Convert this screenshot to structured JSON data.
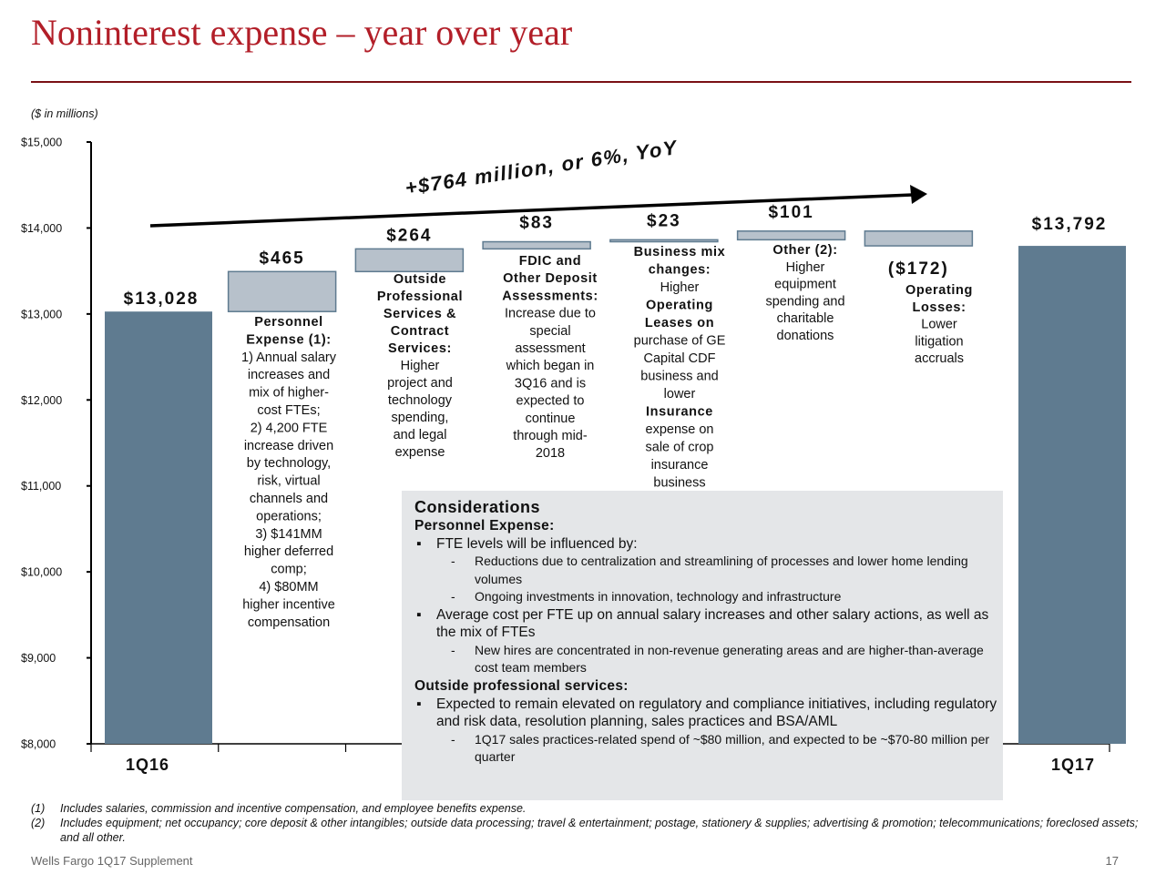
{
  "slide": {
    "title": "Noninterest expense – year over year",
    "units_note": "($ in millions)",
    "footer_left": "Wells Fargo 1Q17 Supplement",
    "page_number": "17"
  },
  "chart_data": {
    "type": "bar",
    "subtype": "waterfall",
    "ylim": [
      8000,
      15000
    ],
    "y_ticks": [
      "$8,000",
      "$9,000",
      "$10,000",
      "$11,000",
      "$12,000",
      "$13,000",
      "$14,000",
      "$15,000"
    ],
    "y_tick_values": [
      8000,
      9000,
      10000,
      11000,
      12000,
      13000,
      14000,
      15000
    ],
    "categories": [
      "1Q16",
      "Personnel Expense",
      "Outside Professional Services & Contract Services",
      "FDIC and Other Deposit Assessments",
      "Business mix changes",
      "Other",
      "Operating Losses",
      "1Q17"
    ],
    "steps": [
      {
        "kind": "total",
        "value": 13028,
        "label": "$13,028",
        "axis_label": "1Q16"
      },
      {
        "kind": "delta",
        "value": 465,
        "label": "$465"
      },
      {
        "kind": "delta",
        "value": 264,
        "label": "$264"
      },
      {
        "kind": "delta",
        "value": 83,
        "label": "$83"
      },
      {
        "kind": "delta",
        "value": 23,
        "label": "$23"
      },
      {
        "kind": "delta",
        "value": 101,
        "label": "$101"
      },
      {
        "kind": "delta",
        "value": -172,
        "label": "($172)"
      },
      {
        "kind": "total",
        "value": 13792,
        "label": "$13,792",
        "axis_label": "1Q17"
      }
    ],
    "annotation": "+$764 million, or 6%, YoY",
    "colors": {
      "total": "#5f7b90",
      "delta": "#b7c1cb",
      "delta_stroke": "#5f7b90",
      "axis": "#000000"
    }
  },
  "descriptions": [
    {
      "id": "personnel",
      "lines": [
        {
          "text": "Personnel",
          "bold": true
        },
        {
          "text": "Expense (1):",
          "bold": true
        },
        {
          "text": "1) Annual salary"
        },
        {
          "text": "increases and"
        },
        {
          "text": "mix of higher-"
        },
        {
          "text": "cost FTEs;"
        },
        {
          "text": "2) 4,200 FTE"
        },
        {
          "text": "increase driven"
        },
        {
          "text": "by technology,"
        },
        {
          "text": "risk, virtual"
        },
        {
          "text": "channels and"
        },
        {
          "text": "operations;"
        },
        {
          "text": "3) $141MM"
        },
        {
          "text": "higher deferred"
        },
        {
          "text": "comp;"
        },
        {
          "text": "4) $80MM"
        },
        {
          "text": "higher incentive"
        },
        {
          "text": "compensation"
        }
      ]
    },
    {
      "id": "outside-services",
      "lines": [
        {
          "text": "Outside",
          "bold": true
        },
        {
          "text": "Professional",
          "bold": true
        },
        {
          "text": "Services &",
          "bold": true
        },
        {
          "text": "Contract",
          "bold": true
        },
        {
          "text": "Services:",
          "bold": true
        },
        {
          "text": "Higher"
        },
        {
          "text": "project and"
        },
        {
          "text": "technology"
        },
        {
          "text": "spending,"
        },
        {
          "text": "and legal"
        },
        {
          "text": "expense"
        }
      ]
    },
    {
      "id": "fdic",
      "lines": [
        {
          "text": "FDIC and",
          "bold": true
        },
        {
          "text": "Other Deposit",
          "bold": true
        },
        {
          "text": "Assessments:",
          "bold": true
        },
        {
          "text": "Increase due to"
        },
        {
          "text": "special"
        },
        {
          "text": "assessment"
        },
        {
          "text": "which began in"
        },
        {
          "text": "3Q16 and is"
        },
        {
          "text": "expected to"
        },
        {
          "text": "continue"
        },
        {
          "text": "through mid-"
        },
        {
          "text": "2018"
        }
      ]
    },
    {
      "id": "business-mix",
      "lines": [
        {
          "text": "Business mix",
          "bold": true
        },
        {
          "text": "changes:",
          "bold": true
        },
        {
          "text": "Higher"
        },
        {
          "text": "Operating",
          "bold": true
        },
        {
          "text": "Leases on",
          "bold": true
        },
        {
          "text": "purchase of GE"
        },
        {
          "text": "Capital CDF"
        },
        {
          "text": "business and"
        },
        {
          "text": "lower"
        },
        {
          "text": "Insurance",
          "bold": true
        },
        {
          "text": "expense on"
        },
        {
          "text": "sale of crop"
        },
        {
          "text": "insurance"
        },
        {
          "text": "business"
        }
      ]
    },
    {
      "id": "other",
      "lines": [
        {
          "text": "Other (2):",
          "bold": true
        },
        {
          "text": "Higher"
        },
        {
          "text": "equipment"
        },
        {
          "text": "spending and"
        },
        {
          "text": "charitable"
        },
        {
          "text": "donations"
        }
      ]
    },
    {
      "id": "operating-losses",
      "lines": [
        {
          "text": "Operating",
          "bold": true
        },
        {
          "text": "Losses:",
          "bold": true
        },
        {
          "text": "Lower"
        },
        {
          "text": "litigation"
        },
        {
          "text": "accruals"
        }
      ]
    }
  ],
  "considerations": {
    "heading": "Considerations",
    "personnel_heading": "Personnel Expense:",
    "bullet1": "FTE levels will be influenced by:",
    "bullet1_sub1": "Reductions due to centralization and streamlining of processes and lower home lending volumes",
    "bullet1_sub2": "Ongoing investments in innovation, technology and infrastructure",
    "bullet2": "Average cost per FTE up on annual salary increases and other salary actions, as well as the mix of FTEs",
    "bullet2_sub1": "New hires are concentrated in non-revenue generating areas and are higher-than-average cost team members",
    "outside_heading": "Outside professional services:",
    "bullet3": "Expected to remain elevated on regulatory and compliance initiatives, including regulatory and risk data, resolution planning, sales practices and BSA/AML",
    "bullet3_sub1": "1Q17 sales practices-related spend of ~$80 million, and expected to be ~$70-80 million per quarter"
  },
  "footnotes": [
    {
      "num": "(1)",
      "text": "Includes salaries, commission and incentive compensation, and employee benefits expense."
    },
    {
      "num": "(2)",
      "text": "Includes equipment; net occupancy; core deposit & other intangibles; outside data processing; travel & entertainment; postage, stationery & supplies; advertising & promotion; telecommunications; foreclosed assets; and all other."
    }
  ]
}
